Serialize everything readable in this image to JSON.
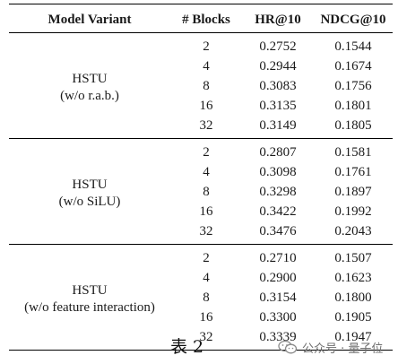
{
  "table": {
    "headers": [
      "Model Variant",
      "# Blocks",
      "HR@10",
      "NDCG@10"
    ],
    "groups": [
      {
        "variant_line1": "HSTU",
        "variant_line2": "(w/o r.a.b.)",
        "rows": [
          {
            "blocks": "2",
            "hr": "0.2752",
            "ndcg": "0.1544"
          },
          {
            "blocks": "4",
            "hr": "0.2944",
            "ndcg": "0.1674"
          },
          {
            "blocks": "8",
            "hr": "0.3083",
            "ndcg": "0.1756"
          },
          {
            "blocks": "16",
            "hr": "0.3135",
            "ndcg": "0.1801"
          },
          {
            "blocks": "32",
            "hr": "0.3149",
            "ndcg": "0.1805"
          }
        ]
      },
      {
        "variant_line1": "HSTU",
        "variant_line2": "(w/o SiLU)",
        "rows": [
          {
            "blocks": "2",
            "hr": "0.2807",
            "ndcg": "0.1581"
          },
          {
            "blocks": "4",
            "hr": "0.3098",
            "ndcg": "0.1761"
          },
          {
            "blocks": "8",
            "hr": "0.3298",
            "ndcg": "0.1897"
          },
          {
            "blocks": "16",
            "hr": "0.3422",
            "ndcg": "0.1992"
          },
          {
            "blocks": "32",
            "hr": "0.3476",
            "ndcg": "0.2043"
          }
        ]
      },
      {
        "variant_line1": "HSTU",
        "variant_line2": "(w/o feature interaction)",
        "rows": [
          {
            "blocks": "2",
            "hr": "0.2710",
            "ndcg": "0.1507"
          },
          {
            "blocks": "4",
            "hr": "0.2900",
            "ndcg": "0.1623"
          },
          {
            "blocks": "8",
            "hr": "0.3154",
            "ndcg": "0.1800"
          },
          {
            "blocks": "16",
            "hr": "0.3300",
            "ndcg": "0.1905"
          },
          {
            "blocks": "32",
            "hr": "0.3339",
            "ndcg": "0.1947"
          }
        ]
      }
    ]
  },
  "caption": "表 2",
  "watermark": {
    "text": "公众号 · 量子位",
    "icon": "wechat-icon"
  }
}
